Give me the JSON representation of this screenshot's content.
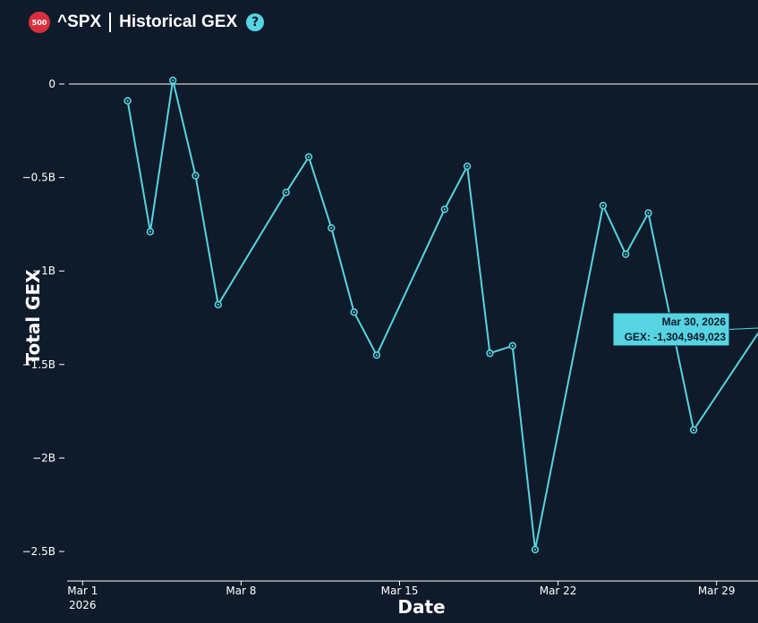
{
  "header": {
    "badge_text": "500",
    "ticker": "^SPX",
    "title": "Historical GEX",
    "help_icon": "?"
  },
  "colors": {
    "background": "#0f1b2a",
    "line": "#56d4e2",
    "badge": "#d92f3c",
    "text": "#ffffff"
  },
  "chart_data": {
    "type": "line",
    "title": "",
    "xlabel": "Date",
    "ylabel": "Total GEX",
    "x_tick_labels": [
      "Mar 1",
      "Mar 8",
      "Mar 15",
      "Mar 22",
      "Mar 29"
    ],
    "x_tick_sublabel": "2026",
    "x_tick_dates": [
      "2026-03-01",
      "2026-03-08",
      "2026-03-15",
      "2026-03-22",
      "2026-03-29"
    ],
    "y_tick_labels": [
      "0",
      "−0.5B",
      "−1B",
      "−1.5B",
      "−2B",
      "−2.5B"
    ],
    "y_tick_values": [
      0,
      -500000000,
      -1000000000,
      -1500000000,
      -2000000000,
      -2500000000
    ],
    "xlim": [
      "2026-02-28",
      "2026-03-30"
    ],
    "ylim": [
      -2650000000,
      120000000
    ],
    "grid": false,
    "series": [
      {
        "points": [
          {
            "x": "2026-03-02",
            "y": -90000000
          },
          {
            "x": "2026-03-03",
            "y": -790000000
          },
          {
            "x": "2026-03-04",
            "y": 20000000
          },
          {
            "x": "2026-03-05",
            "y": -490000000
          },
          {
            "x": "2026-03-06",
            "y": -1180000000
          },
          {
            "x": "2026-03-09",
            "y": -580000000
          },
          {
            "x": "2026-03-10",
            "y": -390000000
          },
          {
            "x": "2026-03-11",
            "y": -770000000
          },
          {
            "x": "2026-03-12",
            "y": -1220000000
          },
          {
            "x": "2026-03-13",
            "y": -1450000000
          },
          {
            "x": "2026-03-16",
            "y": -670000000
          },
          {
            "x": "2026-03-17",
            "y": -440000000
          },
          {
            "x": "2026-03-18",
            "y": -1440000000
          },
          {
            "x": "2026-03-19",
            "y": -1400000000
          },
          {
            "x": "2026-03-20",
            "y": -2490000000
          },
          {
            "x": "2026-03-23",
            "y": -650000000
          },
          {
            "x": "2026-03-24",
            "y": -910000000
          },
          {
            "x": "2026-03-25",
            "y": -690000000
          },
          {
            "x": "2026-03-27",
            "y": -1850000000
          },
          {
            "x": "2026-03-30",
            "y": -1304949023
          }
        ]
      }
    ],
    "tooltip": {
      "date": "Mar 30, 2026",
      "value_text": "GEX: -1,304,949,023"
    }
  }
}
